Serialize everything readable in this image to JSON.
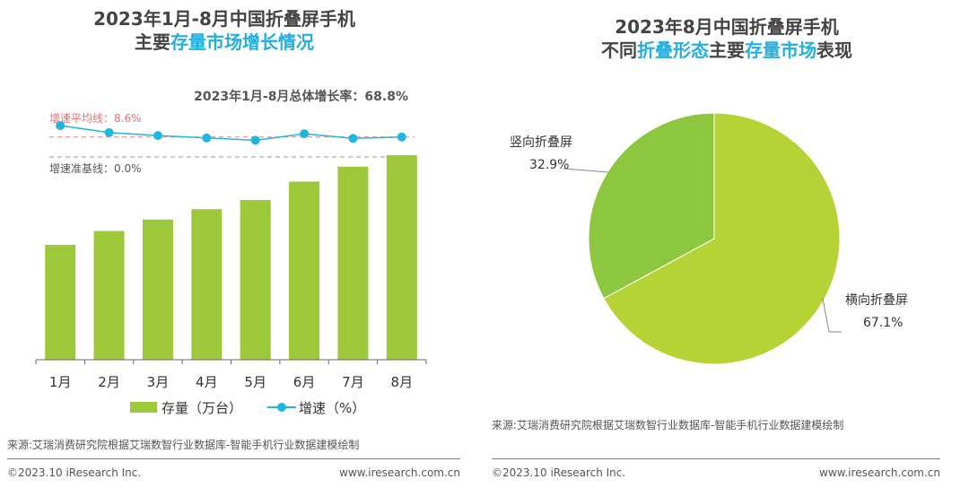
{
  "colors": {
    "green": "#9dc83a",
    "pie_green": "#b5d334",
    "pie_dark_green": "#8dc63f",
    "cyan": "#1fb6e0",
    "accent_text": "#21aee0",
    "avg_line": "#ef8f8f",
    "base_line": "#aaaaaa"
  },
  "left": {
    "title": {
      "line1": "2023年1月-8月中国折叠屏手机",
      "line2_pre": "主要",
      "line2_hi": "存量市场增长情况",
      "line2_post": ""
    },
    "total_growth": "2023年1月-8月总体增长率：68.8%",
    "avg_line_label": "增速平均线：8.6%",
    "base_line_label": "增速准基线：0.0%",
    "source": "来源:艾瑞消费研究院根据艾瑞数智行业数据库-智能手机行业数据建模绘制",
    "footer_left": "©2023.10 iResearch Inc.",
    "footer_right": "www.iresearch.com.cn"
  },
  "right": {
    "title": {
      "line1": "2023年8月中国折叠屏手机",
      "line2_a": "不同",
      "line2_b": "折叠形态",
      "line2_c": "主要",
      "line2_d": "存量市场",
      "line2_e": "表现"
    },
    "source": "来源:艾瑞消费研究院根据艾瑞数智行业数据库-智能手机行业数据建模绘制",
    "footer_left": "©2023.10 iResearch Inc.",
    "footer_right": "www.iresearch.com.cn"
  },
  "chart_data": [
    {
      "type": "bar",
      "title": "2023年1月-8月中国折叠屏手机主要存量市场增长情况",
      "categories": [
        "1月",
        "2月",
        "3月",
        "4月",
        "5月",
        "6月",
        "7月",
        "8月"
      ],
      "series": [
        {
          "name": "存量（万台）",
          "kind": "bar",
          "values": [
            100,
            112,
            122,
            131,
            139,
            155,
            168,
            178
          ]
        },
        {
          "name": "增速（%）",
          "kind": "line",
          "values": [
            13.5,
            10.5,
            9.2,
            8.2,
            7.2,
            10.0,
            8.0,
            8.6
          ]
        }
      ],
      "bar_ylim": [
        0,
        200
      ],
      "line_ylim": [
        -10,
        20
      ],
      "reference_lines": [
        {
          "label": "增速平均线",
          "value": 8.6
        },
        {
          "label": "增速准基线",
          "value": 0.0
        }
      ],
      "annotation": "2023年1月-8月总体增长率：68.8%",
      "legend_position": "bottom"
    },
    {
      "type": "pie",
      "title": "2023年8月中国折叠屏手机不同折叠形态主要存量市场表现",
      "labels": [
        "横向折叠屏",
        "竖向折叠屏"
      ],
      "values": [
        67.1,
        32.9
      ],
      "value_labels": [
        "67.1%",
        "32.9%"
      ]
    }
  ]
}
